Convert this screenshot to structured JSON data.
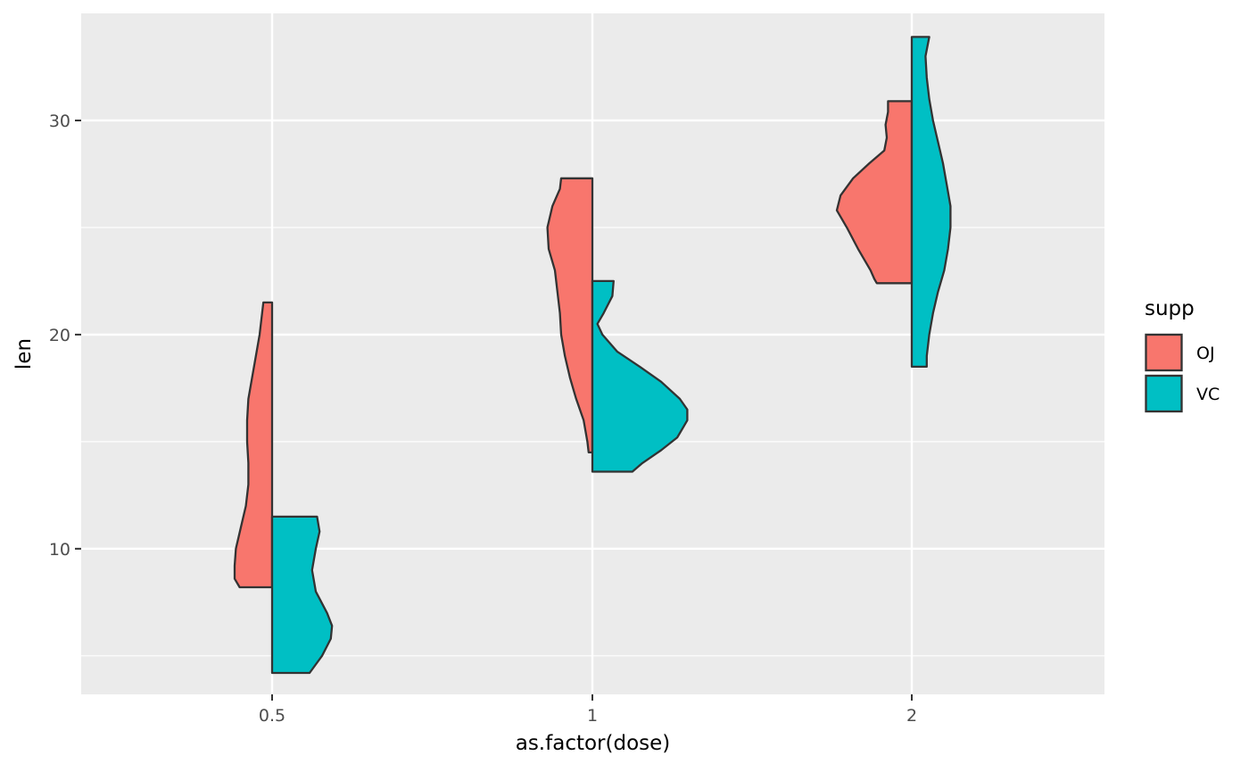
{
  "chart_data": {
    "type": "split-violin",
    "xlabel": "as.factor(dose)",
    "ylabel": "len",
    "categories": [
      "0.5",
      "1",
      "2"
    ],
    "ylim": [
      3.2,
      35.0
    ],
    "y_ticks": [
      10,
      20,
      30
    ],
    "y_minor_ticks": [
      5,
      15,
      25
    ],
    "grid": true,
    "legend": {
      "title": "supp",
      "position": "right",
      "entries": [
        {
          "label": "OJ",
          "color": "#F8766D"
        },
        {
          "label": "VC",
          "color": "#00BFC4"
        }
      ]
    },
    "series": [
      {
        "name": "OJ",
        "side": "left",
        "color": "#F8766D",
        "groups": [
          {
            "category": "0.5",
            "min": 8.2,
            "max": 21.5,
            "density": [
              [
                8.2,
                0.26
              ],
              [
                8.6,
                0.3
              ],
              [
                9.2,
                0.3
              ],
              [
                10.0,
                0.29
              ],
              [
                11.0,
                0.25
              ],
              [
                12.0,
                0.21
              ],
              [
                13.0,
                0.19
              ],
              [
                14.0,
                0.19
              ],
              [
                15.0,
                0.2
              ],
              [
                16.0,
                0.2
              ],
              [
                17.0,
                0.19
              ],
              [
                18.0,
                0.16
              ],
              [
                19.0,
                0.13
              ],
              [
                20.0,
                0.1
              ],
              [
                21.0,
                0.08
              ],
              [
                21.5,
                0.07
              ]
            ]
          },
          {
            "category": "1",
            "min": 14.5,
            "max": 27.3,
            "density": [
              [
                14.5,
                0.03
              ],
              [
                15.0,
                0.04
              ],
              [
                16.0,
                0.07
              ],
              [
                17.0,
                0.13
              ],
              [
                18.0,
                0.18
              ],
              [
                19.0,
                0.22
              ],
              [
                20.0,
                0.25
              ],
              [
                21.0,
                0.26
              ],
              [
                22.0,
                0.28
              ],
              [
                23.0,
                0.3
              ],
              [
                24.0,
                0.35
              ],
              [
                25.0,
                0.36
              ],
              [
                26.0,
                0.32
              ],
              [
                26.8,
                0.26
              ],
              [
                27.3,
                0.25
              ]
            ]
          },
          {
            "category": "2",
            "min": 22.4,
            "max": 30.9,
            "density": [
              [
                22.4,
                0.28
              ],
              [
                22.6,
                0.3
              ],
              [
                23.0,
                0.33
              ],
              [
                24.0,
                0.43
              ],
              [
                25.0,
                0.52
              ],
              [
                25.8,
                0.6
              ],
              [
                26.5,
                0.57
              ],
              [
                27.3,
                0.47
              ],
              [
                28.0,
                0.34
              ],
              [
                28.6,
                0.22
              ],
              [
                29.2,
                0.2
              ],
              [
                29.8,
                0.21
              ],
              [
                30.4,
                0.19
              ],
              [
                30.9,
                0.19
              ]
            ]
          }
        ]
      },
      {
        "name": "VC",
        "side": "right",
        "color": "#00BFC4",
        "groups": [
          {
            "category": "0.5",
            "min": 4.2,
            "max": 11.5,
            "density": [
              [
                4.2,
                0.3
              ],
              [
                5.0,
                0.4
              ],
              [
                5.8,
                0.47
              ],
              [
                6.4,
                0.48
              ],
              [
                7.0,
                0.44
              ],
              [
                8.0,
                0.35
              ],
              [
                9.0,
                0.32
              ],
              [
                10.0,
                0.35
              ],
              [
                10.8,
                0.38
              ],
              [
                11.5,
                0.36
              ]
            ]
          },
          {
            "category": "1",
            "min": 13.6,
            "max": 22.5,
            "density": [
              [
                13.6,
                0.32
              ],
              [
                14.0,
                0.4
              ],
              [
                14.6,
                0.55
              ],
              [
                15.2,
                0.68
              ],
              [
                16.0,
                0.76
              ],
              [
                16.5,
                0.76
              ],
              [
                17.0,
                0.7
              ],
              [
                17.8,
                0.55
              ],
              [
                18.5,
                0.38
              ],
              [
                19.2,
                0.2
              ],
              [
                20.0,
                0.08
              ],
              [
                20.5,
                0.04
              ],
              [
                21.0,
                0.09
              ],
              [
                21.8,
                0.16
              ],
              [
                22.5,
                0.17
              ]
            ]
          },
          {
            "category": "2",
            "min": 18.5,
            "max": 33.9,
            "density": [
              [
                18.5,
                0.12
              ],
              [
                19.0,
                0.12
              ],
              [
                20.0,
                0.14
              ],
              [
                21.0,
                0.17
              ],
              [
                22.0,
                0.21
              ],
              [
                23.0,
                0.26
              ],
              [
                24.0,
                0.29
              ],
              [
                25.0,
                0.31
              ],
              [
                26.0,
                0.31
              ],
              [
                27.0,
                0.28
              ],
              [
                28.0,
                0.25
              ],
              [
                29.0,
                0.21
              ],
              [
                30.0,
                0.17
              ],
              [
                31.0,
                0.14
              ],
              [
                32.0,
                0.12
              ],
              [
                33.0,
                0.11
              ],
              [
                33.9,
                0.14
              ]
            ]
          }
        ]
      }
    ]
  }
}
